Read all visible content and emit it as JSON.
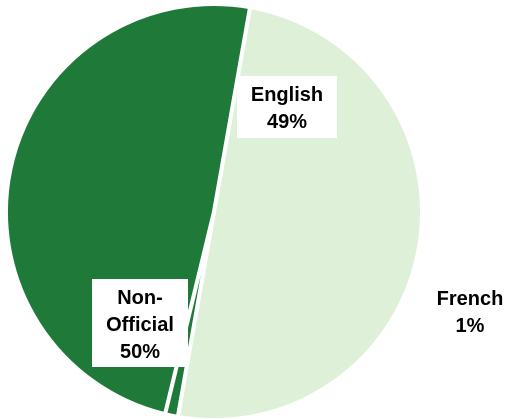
{
  "chart_data": {
    "type": "pie",
    "title": "",
    "slices": [
      {
        "label_lines": [
          "English"
        ],
        "value_text": "49%",
        "value": 49,
        "color": "#1f7a3a"
      },
      {
        "label_lines": [
          "French"
        ],
        "value_text": "1%",
        "value": 1,
        "color": "#1f7a3a"
      },
      {
        "label_lines": [
          "Non-",
          "Official"
        ],
        "value_text": "50%",
        "value": 50,
        "color": "#dff0d8"
      }
    ]
  }
}
